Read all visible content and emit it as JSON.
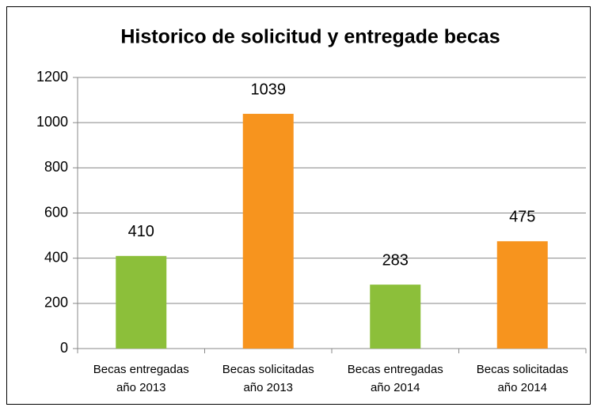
{
  "chart_data": {
    "type": "bar",
    "title": "Historico de solicitud y entregade becas",
    "categories": [
      [
        "Becas entregadas",
        "año 2013"
      ],
      [
        "Becas solicitadas",
        "año 2013"
      ],
      [
        "Becas entregadas",
        "año 2014"
      ],
      [
        "Becas solicitadas",
        "año 2014"
      ]
    ],
    "values": [
      410,
      1039,
      283,
      475
    ],
    "colors": [
      "#8cbf3a",
      "#f7941e",
      "#8cbf3a",
      "#f7941e"
    ],
    "ylim": [
      0,
      1200
    ],
    "yticks": [
      0,
      200,
      400,
      600,
      800,
      1000,
      1200
    ],
    "grid": true
  }
}
